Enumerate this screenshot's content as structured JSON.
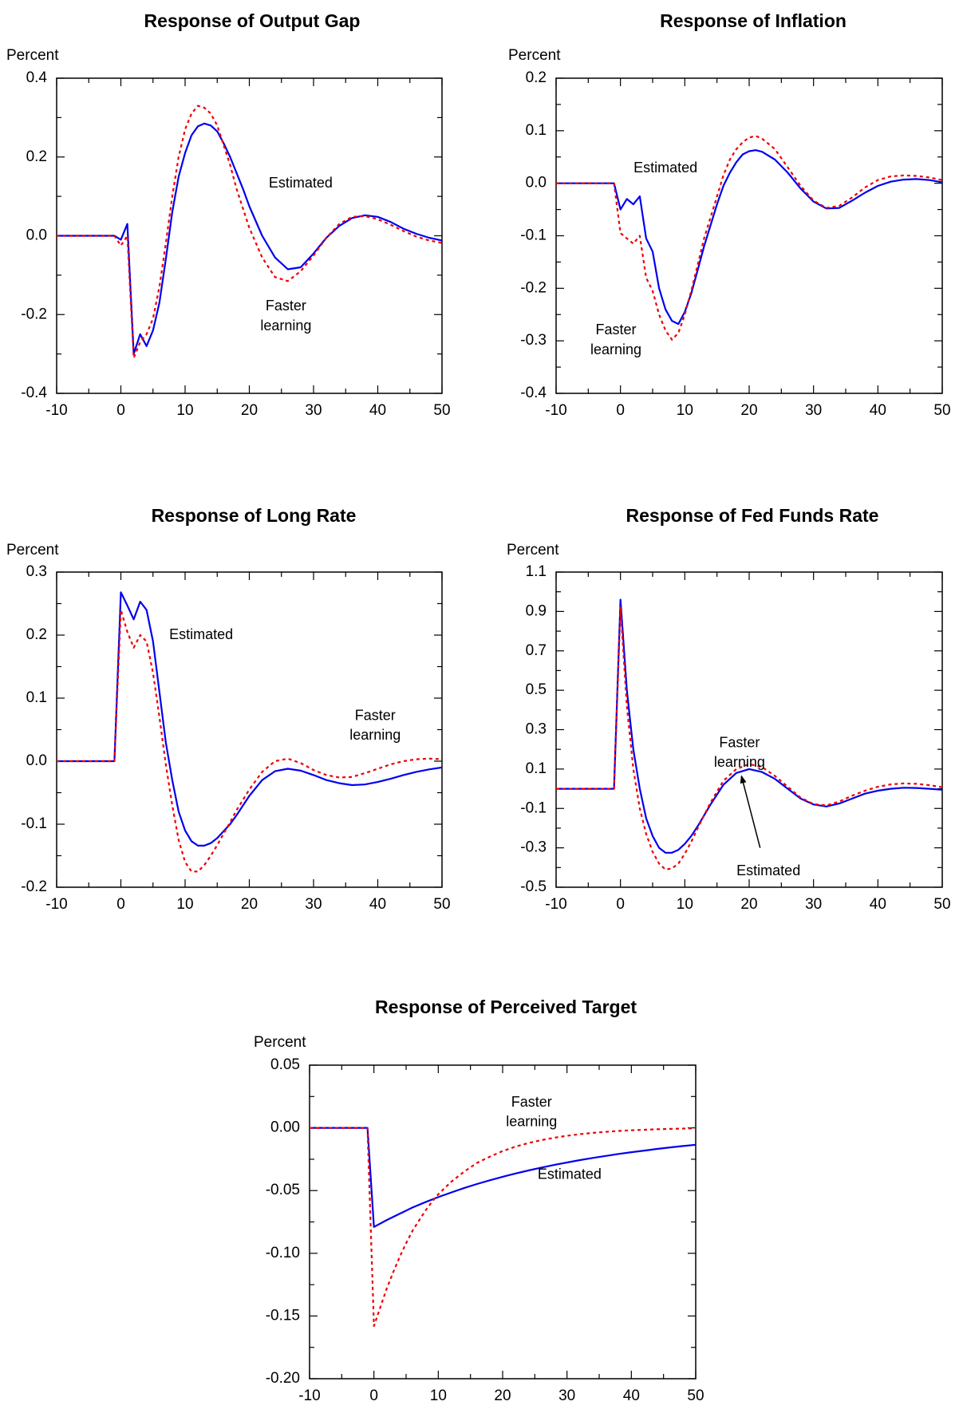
{
  "chart_data": [
    {
      "type": "line",
      "title": "Response of Output Gap",
      "ylabel": "Percent",
      "xlim": [
        -10,
        50
      ],
      "ylim": [
        -0.4,
        0.4
      ],
      "xticks": [
        -10,
        0,
        10,
        20,
        30,
        40,
        50
      ],
      "yticks": [
        -0.4,
        -0.2,
        0.0,
        0.2,
        0.4
      ],
      "ytick_labels": [
        "-0.4",
        "-0.2",
        "0.0",
        "0.2",
        "0.4"
      ],
      "series": [
        {
          "color": "#0000ee",
          "style": "solid",
          "x": [
            -10,
            -1,
            0,
            1,
            2,
            3,
            4,
            5,
            6,
            7,
            8,
            9,
            10,
            11,
            12,
            13,
            14,
            15,
            16,
            17,
            18,
            19,
            20,
            22,
            24,
            26,
            28,
            30,
            32,
            34,
            36,
            38,
            40,
            42,
            44,
            46,
            48,
            50
          ],
          "y": [
            0,
            0,
            -0.01,
            0.03,
            -0.3,
            -0.25,
            -0.28,
            -0.24,
            -0.17,
            -0.06,
            0.06,
            0.15,
            0.21,
            0.255,
            0.278,
            0.285,
            0.28,
            0.265,
            0.235,
            0.2,
            0.16,
            0.12,
            0.075,
            0.0,
            -0.055,
            -0.085,
            -0.08,
            -0.045,
            -0.005,
            0.025,
            0.045,
            0.052,
            0.048,
            0.035,
            0.018,
            0.005,
            -0.005,
            -0.012
          ]
        },
        {
          "color": "#ee0000",
          "style": "dashed",
          "x": [
            -10,
            -1,
            0,
            1,
            2,
            3,
            4,
            5,
            6,
            7,
            8,
            9,
            10,
            11,
            12,
            13,
            14,
            15,
            16,
            17,
            18,
            19,
            20,
            22,
            24,
            26,
            28,
            30,
            32,
            34,
            36,
            38,
            40,
            42,
            44,
            46,
            48,
            50
          ],
          "y": [
            0,
            0,
            -0.025,
            0.0,
            -0.31,
            -0.27,
            -0.25,
            -0.21,
            -0.13,
            -0.02,
            0.1,
            0.2,
            0.27,
            0.31,
            0.33,
            0.325,
            0.31,
            0.28,
            0.23,
            0.18,
            0.12,
            0.07,
            0.02,
            -0.055,
            -0.105,
            -0.115,
            -0.09,
            -0.05,
            -0.005,
            0.03,
            0.048,
            0.05,
            0.042,
            0.028,
            0.012,
            -0.002,
            -0.012,
            -0.018
          ]
        }
      ],
      "annotations": [
        {
          "text": "Estimated",
          "x": 28,
          "y": 0.132
        },
        {
          "text": "Faster",
          "x": 25.7,
          "y": -0.18
        },
        {
          "text": "learning",
          "x": 25.7,
          "y": -0.23
        }
      ]
    },
    {
      "type": "line",
      "title": "Response of Inflation",
      "ylabel": "Percent",
      "xlim": [
        -10,
        50
      ],
      "ylim": [
        -0.4,
        0.2
      ],
      "xticks": [
        -10,
        0,
        10,
        20,
        30,
        40,
        50
      ],
      "yticks": [
        -0.4,
        -0.3,
        -0.2,
        -0.1,
        0.0,
        0.1,
        0.2
      ],
      "ytick_labels": [
        "-0.4",
        "-0.3",
        "-0.2",
        "-0.1",
        "0.0",
        "0.1",
        "0.2"
      ],
      "series": [
        {
          "color": "#0000ee",
          "style": "solid",
          "x": [
            -10,
            -1,
            0,
            1,
            2,
            3,
            4,
            5,
            6,
            7,
            8,
            9,
            10,
            11,
            12,
            13,
            14,
            15,
            16,
            17,
            18,
            19,
            20,
            21,
            22,
            24,
            26,
            28,
            30,
            32,
            34,
            36,
            38,
            40,
            42,
            44,
            46,
            48,
            50
          ],
          "y": [
            0,
            0,
            -0.05,
            -0.03,
            -0.04,
            -0.025,
            -0.105,
            -0.13,
            -0.2,
            -0.24,
            -0.262,
            -0.268,
            -0.245,
            -0.21,
            -0.165,
            -0.12,
            -0.08,
            -0.04,
            -0.005,
            0.02,
            0.04,
            0.055,
            0.061,
            0.063,
            0.06,
            0.045,
            0.02,
            -0.01,
            -0.035,
            -0.048,
            -0.047,
            -0.033,
            -0.018,
            -0.005,
            0.003,
            0.007,
            0.008,
            0.006,
            0.002
          ]
        },
        {
          "color": "#ee0000",
          "style": "dashed",
          "x": [
            -10,
            -1,
            0,
            1,
            2,
            3,
            4,
            5,
            6,
            7,
            8,
            9,
            10,
            11,
            12,
            13,
            14,
            15,
            16,
            17,
            18,
            19,
            20,
            21,
            22,
            24,
            26,
            28,
            30,
            32,
            34,
            36,
            38,
            40,
            42,
            44,
            46,
            48,
            50
          ],
          "y": [
            0,
            0,
            -0.095,
            -0.105,
            -0.115,
            -0.1,
            -0.18,
            -0.205,
            -0.25,
            -0.28,
            -0.298,
            -0.285,
            -0.25,
            -0.205,
            -0.155,
            -0.105,
            -0.065,
            -0.025,
            0.015,
            0.045,
            0.065,
            0.078,
            0.087,
            0.09,
            0.085,
            0.065,
            0.03,
            -0.005,
            -0.033,
            -0.047,
            -0.043,
            -0.027,
            -0.008,
            0.006,
            0.013,
            0.015,
            0.014,
            0.011,
            0.006
          ]
        }
      ],
      "annotations": [
        {
          "text": "Estimated",
          "x": 7,
          "y": 0.028
        },
        {
          "text": "Faster",
          "x": -0.7,
          "y": -0.28
        },
        {
          "text": "learning",
          "x": -0.7,
          "y": -0.318
        }
      ]
    },
    {
      "type": "line",
      "title": "Response of Long Rate",
      "ylabel": "Percent",
      "xlim": [
        -10,
        50
      ],
      "ylim": [
        -0.2,
        0.3
      ],
      "xticks": [
        -10,
        0,
        10,
        20,
        30,
        40,
        50
      ],
      "yticks": [
        -0.2,
        -0.1,
        0.0,
        0.1,
        0.2,
        0.3
      ],
      "ytick_labels": [
        "-0.2",
        "-0.1",
        "0.0",
        "0.1",
        "0.2",
        "0.3"
      ],
      "series": [
        {
          "color": "#0000ee",
          "style": "solid",
          "x": [
            -10,
            -1,
            0,
            1,
            2,
            3,
            4,
            5,
            6,
            7,
            8,
            9,
            10,
            11,
            12,
            13,
            14,
            15,
            16,
            17,
            18,
            20,
            22,
            24,
            26,
            28,
            30,
            32,
            34,
            36,
            38,
            40,
            42,
            44,
            46,
            48,
            50
          ],
          "y": [
            0,
            0,
            0.268,
            0.247,
            0.225,
            0.253,
            0.24,
            0.19,
            0.11,
            0.03,
            -0.03,
            -0.08,
            -0.11,
            -0.127,
            -0.134,
            -0.134,
            -0.13,
            -0.122,
            -0.111,
            -0.1,
            -0.086,
            -0.055,
            -0.03,
            -0.016,
            -0.012,
            -0.015,
            -0.022,
            -0.03,
            -0.035,
            -0.038,
            -0.037,
            -0.033,
            -0.028,
            -0.022,
            -0.017,
            -0.013,
            -0.01
          ]
        },
        {
          "color": "#ee0000",
          "style": "dashed",
          "x": [
            -10,
            -1,
            0,
            1,
            2,
            3,
            4,
            5,
            6,
            7,
            8,
            9,
            10,
            11,
            12,
            13,
            14,
            15,
            16,
            17,
            18,
            20,
            22,
            24,
            26,
            28,
            30,
            32,
            34,
            36,
            38,
            40,
            42,
            44,
            46,
            48,
            50
          ],
          "y": [
            0,
            0,
            0.24,
            0.205,
            0.18,
            0.2,
            0.19,
            0.14,
            0.07,
            -0.005,
            -0.07,
            -0.125,
            -0.16,
            -0.175,
            -0.175,
            -0.165,
            -0.15,
            -0.133,
            -0.115,
            -0.097,
            -0.078,
            -0.045,
            -0.017,
            0.0,
            0.004,
            -0.003,
            -0.014,
            -0.022,
            -0.026,
            -0.025,
            -0.019,
            -0.012,
            -0.005,
            0.0,
            0.003,
            0.004,
            0.003
          ]
        }
      ],
      "annotations": [
        {
          "text": "Estimated",
          "x": 12.5,
          "y": 0.2
        },
        {
          "text": "Faster",
          "x": 39.6,
          "y": 0.0715
        },
        {
          "text": "learning",
          "x": 39.6,
          "y": 0.04
        }
      ]
    },
    {
      "type": "line",
      "title": "Response of Fed Funds Rate",
      "ylabel": "Percent",
      "xlim": [
        -10,
        50
      ],
      "ylim": [
        -0.5,
        1.1
      ],
      "xticks": [
        -10,
        0,
        10,
        20,
        30,
        40,
        50
      ],
      "yticks": [
        -0.5,
        -0.3,
        -0.1,
        0.1,
        0.3,
        0.5,
        0.7,
        0.9,
        1.1
      ],
      "ytick_labels": [
        "-0.5",
        "-0.3",
        "-0.1",
        "0.1",
        "0.3",
        "0.5",
        "0.7",
        "0.9",
        "1.1"
      ],
      "series": [
        {
          "color": "#0000ee",
          "style": "solid",
          "x": [
            -10,
            -1,
            0,
            1,
            2,
            3,
            4,
            5,
            6,
            7,
            8,
            9,
            10,
            11,
            12,
            14,
            16,
            18,
            20,
            22,
            24,
            26,
            28,
            30,
            32,
            34,
            36,
            38,
            40,
            42,
            44,
            46,
            48,
            50
          ],
          "y": [
            0,
            0,
            0.96,
            0.5,
            0.2,
            0.0,
            -0.15,
            -0.24,
            -0.3,
            -0.325,
            -0.325,
            -0.31,
            -0.28,
            -0.24,
            -0.19,
            -0.08,
            0.02,
            0.08,
            0.1,
            0.085,
            0.05,
            0.0,
            -0.05,
            -0.08,
            -0.09,
            -0.075,
            -0.05,
            -0.025,
            -0.01,
            0.0,
            0.005,
            0.004,
            0.0,
            -0.005
          ]
        },
        {
          "color": "#ee0000",
          "style": "dashed",
          "x": [
            -10,
            -1,
            0,
            1,
            2,
            3,
            4,
            5,
            6,
            7,
            8,
            9,
            10,
            11,
            12,
            14,
            16,
            18,
            20,
            22,
            24,
            26,
            28,
            30,
            32,
            34,
            36,
            38,
            40,
            42,
            44,
            46,
            48,
            50
          ],
          "y": [
            0,
            0,
            0.92,
            0.42,
            0.1,
            -0.1,
            -0.23,
            -0.32,
            -0.38,
            -0.41,
            -0.405,
            -0.38,
            -0.33,
            -0.27,
            -0.2,
            -0.07,
            0.04,
            0.1,
            0.125,
            0.11,
            0.065,
            0.01,
            -0.045,
            -0.078,
            -0.085,
            -0.065,
            -0.035,
            -0.01,
            0.01,
            0.022,
            0.027,
            0.025,
            0.018,
            0.008
          ]
        }
      ],
      "annotations": [
        {
          "text": "Faster",
          "x": 18.5,
          "y": 0.23
        },
        {
          "text": "learning",
          "x": 18.5,
          "y": 0.13
        },
        {
          "text": "Estimated",
          "x": 23,
          "y": -0.42
        }
      ],
      "arrow": {
        "from": [
          21.7,
          -0.3
        ],
        "to": [
          18.8,
          0.065
        ]
      }
    },
    {
      "type": "line",
      "title": "Response of Perceived Target",
      "ylabel": "Percent",
      "xlim": [
        -10,
        50
      ],
      "ylim": [
        -0.2,
        0.05
      ],
      "xticks": [
        -10,
        0,
        10,
        20,
        30,
        40,
        50
      ],
      "yticks": [
        -0.2,
        -0.15,
        -0.1,
        -0.05,
        0.0,
        0.05
      ],
      "ytick_labels": [
        "-0.20",
        "-0.15",
        "-0.10",
        "-0.05",
        "0.00",
        "0.05"
      ],
      "series": [
        {
          "color": "#0000ee",
          "style": "solid",
          "x": [
            -10,
            -1,
            0,
            2,
            4,
            6,
            8,
            10,
            12,
            14,
            16,
            18,
            20,
            22,
            24,
            26,
            28,
            30,
            32,
            34,
            36,
            38,
            40,
            42,
            44,
            46,
            48,
            50
          ],
          "y": [
            0,
            0,
            -0.079,
            -0.0735,
            -0.0685,
            -0.0635,
            -0.0592,
            -0.0552,
            -0.0515,
            -0.048,
            -0.0448,
            -0.0418,
            -0.039,
            -0.0364,
            -0.034,
            -0.0317,
            -0.0296,
            -0.0276,
            -0.0257,
            -0.024,
            -0.0224,
            -0.0208,
            -0.0194,
            -0.0181,
            -0.0168,
            -0.0156,
            -0.0145,
            -0.0135
          ]
        },
        {
          "color": "#ee0000",
          "style": "dashed",
          "x": [
            -10,
            -1,
            0,
            1,
            2,
            3,
            4,
            5,
            6,
            7,
            8,
            9,
            10,
            12,
            14,
            16,
            18,
            20,
            22,
            24,
            26,
            28,
            30,
            32,
            34,
            36,
            38,
            40,
            42,
            44,
            46,
            48,
            50
          ],
          "y": [
            0,
            0,
            -0.158,
            -0.143,
            -0.128,
            -0.115,
            -0.103,
            -0.092,
            -0.082,
            -0.074,
            -0.066,
            -0.059,
            -0.053,
            -0.043,
            -0.035,
            -0.028,
            -0.023,
            -0.0185,
            -0.015,
            -0.0121,
            -0.0098,
            -0.0079,
            -0.0063,
            -0.005,
            -0.004,
            -0.0032,
            -0.0025,
            -0.0019,
            -0.0015,
            -0.0011,
            -0.0008,
            -0.0006,
            -0.0004
          ]
        }
      ],
      "annotations": [
        {
          "text": "Faster",
          "x": 24.5,
          "y": 0.02
        },
        {
          "text": "learning",
          "x": 24.5,
          "y": 0.0043
        },
        {
          "text": "Estimated",
          "x": 30.4,
          "y": -0.0375
        }
      ]
    }
  ]
}
